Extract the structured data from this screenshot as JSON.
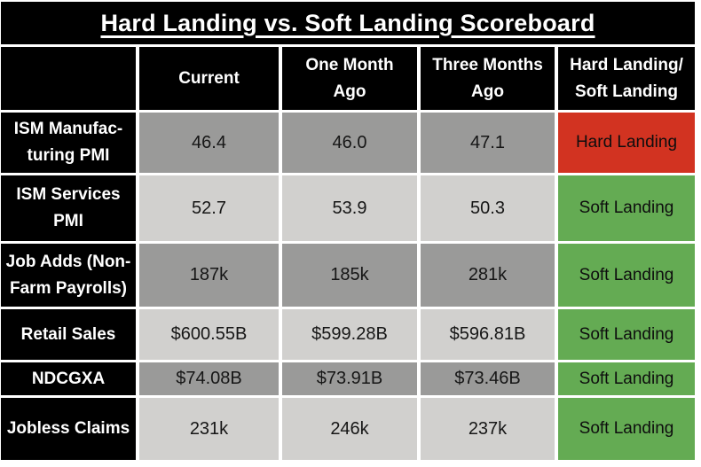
{
  "title": "Hard Landing vs. Soft Landing Scoreboard",
  "header": {
    "metric": "",
    "current": "Current",
    "one_month_ago": "One Month\nAgo",
    "three_months_ago": "Three Months\nAgo",
    "verdict": "Hard Landing/\nSoft Landing"
  },
  "rows": [
    {
      "label": "ISM Manufac-\nturing PMI",
      "values": [
        "46.4",
        "46.0",
        "47.1"
      ],
      "verdict": "Hard Landing",
      "shade": "#9a9a99",
      "verdict_color": "#d23321"
    },
    {
      "label": "ISM Services\nPMI",
      "values": [
        "52.7",
        "53.9",
        "50.3"
      ],
      "verdict": "Soft Landing",
      "shade": "#d1d0ce",
      "verdict_color": "#64ab53"
    },
    {
      "label": "Job Adds (Non-\nFarm Payrolls)",
      "values": [
        "187k",
        "185k",
        "281k"
      ],
      "verdict": "Soft Landing",
      "shade": "#9a9a99",
      "verdict_color": "#64ab53"
    },
    {
      "label": "Retail Sales",
      "values": [
        "$600.55B",
        "$599.28B",
        "$596.81B"
      ],
      "verdict": "Soft Landing",
      "shade": "#d1d0ce",
      "verdict_color": "#64ab53"
    },
    {
      "label": "NDCGXA",
      "values": [
        "$74.08B",
        "$73.91B",
        "$73.46B"
      ],
      "verdict": "Soft Landing",
      "shade": "#9a9a99",
      "verdict_color": "#64ab53"
    },
    {
      "label": "Jobless Claims",
      "values": [
        "231k",
        "246k",
        "237k"
      ],
      "verdict": "Soft Landing",
      "shade": "#d1d0ce",
      "verdict_color": "#64ab53"
    }
  ],
  "colors": {
    "hard_landing": "#d23321",
    "soft_landing": "#64ab53",
    "row_shade_dark": "#9a9a99",
    "row_shade_light": "#d1d0ce",
    "header_bg": "#000000",
    "header_text": "#ffffff"
  },
  "chart_data": {
    "type": "table",
    "title": "Hard Landing vs. Soft Landing Scoreboard",
    "columns": [
      "",
      "Current",
      "One Month Ago",
      "Three Months Ago",
      "Hard Landing/ Soft Landing"
    ],
    "rows": [
      {
        "metric": "ISM Manufacturing PMI",
        "current": "46.4",
        "one_month_ago": "46.0",
        "three_months_ago": "47.1",
        "verdict": "Hard Landing"
      },
      {
        "metric": "ISM Services PMI",
        "current": "52.7",
        "one_month_ago": "53.9",
        "three_months_ago": "50.3",
        "verdict": "Soft Landing"
      },
      {
        "metric": "Job Adds (Non-Farm Payrolls)",
        "current": "187k",
        "one_month_ago": "185k",
        "three_months_ago": "281k",
        "verdict": "Soft Landing"
      },
      {
        "metric": "Retail Sales",
        "current": "$600.55B",
        "one_month_ago": "$599.28B",
        "three_months_ago": "$596.81B",
        "verdict": "Soft Landing"
      },
      {
        "metric": "NDCGXA",
        "current": "$74.08B",
        "one_month_ago": "$73.91B",
        "three_months_ago": "$73.46B",
        "verdict": "Soft Landing"
      },
      {
        "metric": "Jobless Claims",
        "current": "231k",
        "one_month_ago": "246k",
        "three_months_ago": "237k",
        "verdict": "Soft Landing"
      }
    ]
  }
}
